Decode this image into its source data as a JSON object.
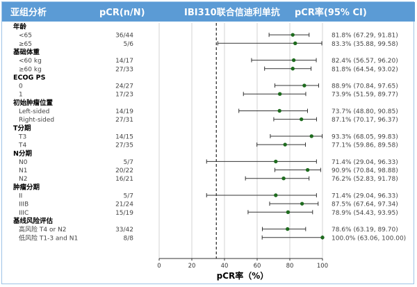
{
  "header": {
    "col_subgroup": "亚组分析",
    "col_pcr_n": "pCR(n/N)",
    "col_treatment": "IBI310联合信迪利单抗",
    "col_pcr_rate": "pCR率(95% CI)"
  },
  "colors": {
    "header_bg": "#5b9bd5",
    "point": "#1e6b1e",
    "ci_line": "#333333",
    "grid": "#c8c8c8",
    "ref_line": "#222222"
  },
  "chart_data": {
    "type": "forest",
    "title": "",
    "xlabel": "pCR率（%）",
    "xlim": [
      0,
      100
    ],
    "xticks": [
      0,
      20,
      40,
      60,
      80,
      100
    ],
    "reference_line": 35,
    "grid": true,
    "rows": [
      {
        "kind": "group",
        "label": "年龄"
      },
      {
        "kind": "item",
        "label": "<65",
        "n": "36/44",
        "est": 81.8,
        "lo": 67.29,
        "hi": 91.81,
        "text": "81.8% (67.29, 91.81)"
      },
      {
        "kind": "item",
        "label": "≥65",
        "n": "5/6",
        "est": 83.3,
        "lo": 35.88,
        "hi": 99.58,
        "text": "83.3% (35.88, 99.58)"
      },
      {
        "kind": "group",
        "label": "基础体重"
      },
      {
        "kind": "item",
        "label": "<60 kg",
        "n": "14/17",
        "est": 82.4,
        "lo": 56.57,
        "hi": 96.2,
        "text": "82.4% (56.57, 96.20)"
      },
      {
        "kind": "item",
        "label": "≥60 kg",
        "n": "27/33",
        "est": 81.8,
        "lo": 64.54,
        "hi": 93.02,
        "text": "81.8% (64.54, 93.02)"
      },
      {
        "kind": "group",
        "label": "ECOG PS"
      },
      {
        "kind": "item",
        "label": "0",
        "n": "24/27",
        "est": 88.9,
        "lo": 70.84,
        "hi": 97.65,
        "text": "88.9% (70.84, 97.65)"
      },
      {
        "kind": "item",
        "label": "1",
        "n": "17/23",
        "est": 73.9,
        "lo": 51.59,
        "hi": 89.77,
        "text": "73.9% (51.59, 89.77)"
      },
      {
        "kind": "group",
        "label": "初始肿瘤位置"
      },
      {
        "kind": "item",
        "label": "Left-sided",
        "n": "14/19",
        "est": 73.7,
        "lo": 48.8,
        "hi": 90.85,
        "text": "73.7% (48.80, 90.85)"
      },
      {
        "kind": "item",
        "label": "Right-sided",
        "n": "27/31",
        "est": 87.1,
        "lo": 70.17,
        "hi": 96.37,
        "text": "87.1% (70.17, 96.37)"
      },
      {
        "kind": "group",
        "label": "T分期"
      },
      {
        "kind": "item",
        "label": "T3",
        "n": "14/15",
        "est": 93.3,
        "lo": 68.05,
        "hi": 99.83,
        "text": "93.3% (68.05, 99.83)"
      },
      {
        "kind": "item",
        "label": "T4",
        "n": "27/35",
        "est": 77.1,
        "lo": 59.86,
        "hi": 89.58,
        "text": "77.1% (59.86, 89.58)"
      },
      {
        "kind": "group",
        "label": "N分期"
      },
      {
        "kind": "item",
        "label": "N0",
        "n": "5/7",
        "est": 71.4,
        "lo": 29.04,
        "hi": 96.33,
        "text": "71.4% (29.04, 96.33)"
      },
      {
        "kind": "item",
        "label": "N1",
        "n": "20/22",
        "est": 90.9,
        "lo": 70.84,
        "hi": 98.88,
        "text": "90.9% (70.84, 98.88)"
      },
      {
        "kind": "item",
        "label": "N2",
        "n": "16/21",
        "est": 76.2,
        "lo": 52.83,
        "hi": 91.78,
        "text": "76.2% (52.83, 91.78)"
      },
      {
        "kind": "group",
        "label": "肿瘤分期"
      },
      {
        "kind": "item",
        "label": "II",
        "n": "5/7",
        "est": 71.4,
        "lo": 29.04,
        "hi": 96.33,
        "text": "71.4% (29.04, 96.33)"
      },
      {
        "kind": "item",
        "label": "IIIB",
        "n": "21/24",
        "est": 87.5,
        "lo": 67.64,
        "hi": 97.34,
        "text": "87.5% (67.64, 97.34)"
      },
      {
        "kind": "item",
        "label": "IIIC",
        "n": "15/19",
        "est": 78.9,
        "lo": 54.43,
        "hi": 93.95,
        "text": "78.9% (54.43, 93.95)"
      },
      {
        "kind": "group",
        "label": "基线风险评估"
      },
      {
        "kind": "item",
        "label": "高风险   T4 or N2",
        "n": "33/42",
        "est": 78.6,
        "lo": 63.19,
        "hi": 89.7,
        "text": "78.6% (63.19, 89.70)"
      },
      {
        "kind": "item",
        "label": "低风险   T1-3 and N1",
        "n": "8/8",
        "est": 100.0,
        "lo": 63.06,
        "hi": 100.0,
        "text": "100.0% (63.06, 100.00)"
      }
    ]
  }
}
